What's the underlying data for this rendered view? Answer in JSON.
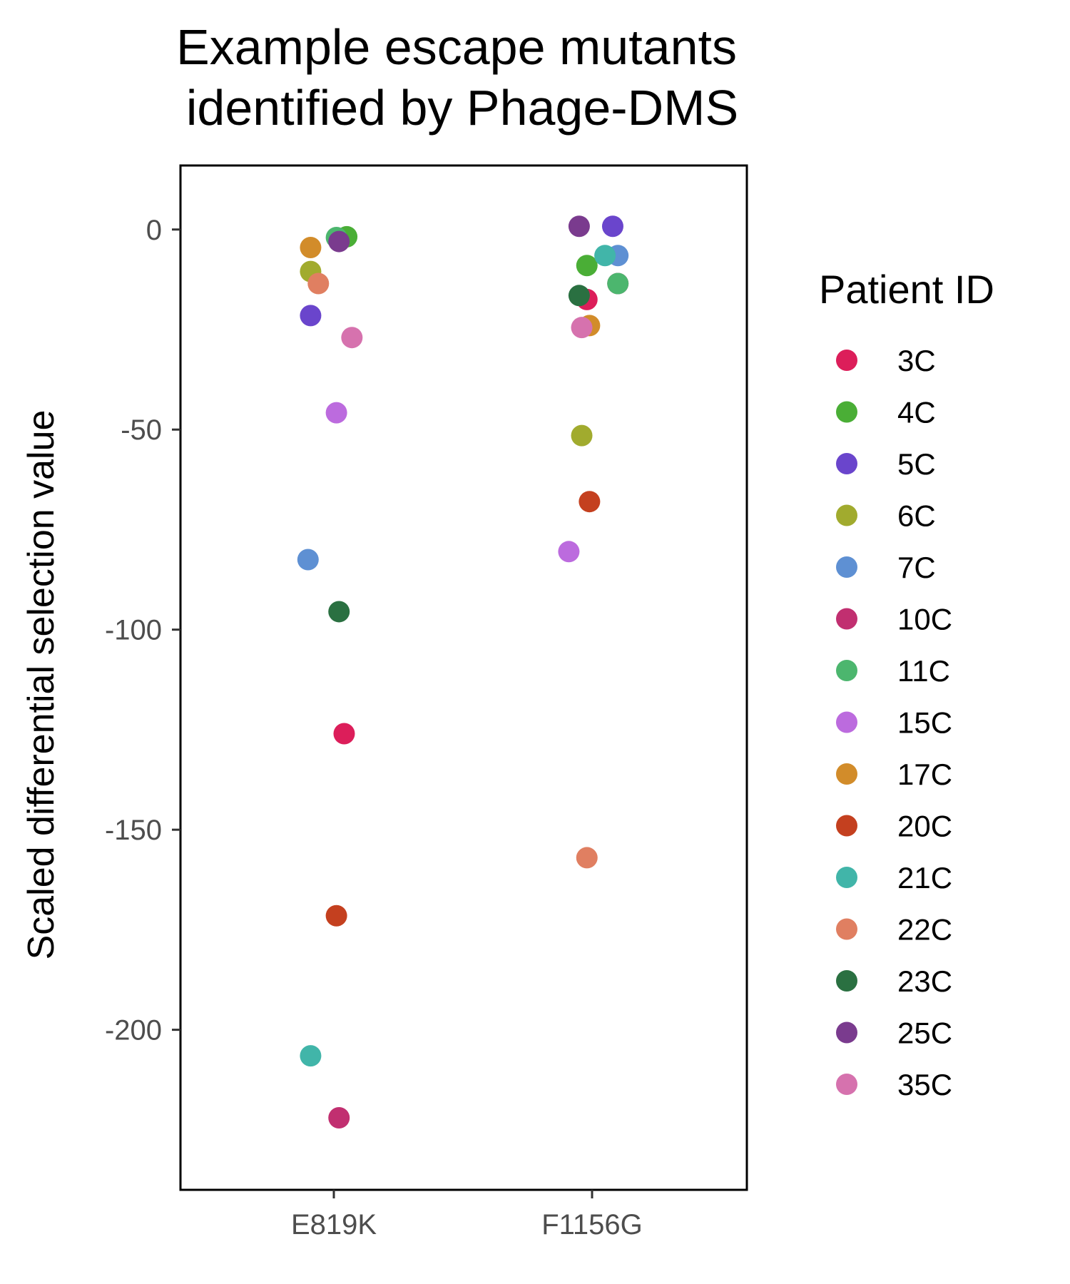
{
  "chart_data": {
    "type": "scatter",
    "title_lines": [
      "Example escape mutants",
      "identified by Phage-DMS"
    ],
    "xlabel": "",
    "ylabel": "Scaled differential selection value",
    "categories": [
      "E819K",
      "F1156G"
    ],
    "ylim": [
      -240,
      16
    ],
    "yticks": [
      0,
      -50,
      -100,
      -150,
      -200
    ],
    "grid": false,
    "legend": {
      "title": "Patient ID",
      "placement": "right"
    },
    "series": [
      {
        "name": "3C",
        "color": "#DC1E5A",
        "values": [
          -126,
          -17.5
        ]
      },
      {
        "name": "4C",
        "color": "#4AAE36",
        "values": [
          -1.8,
          -9
        ]
      },
      {
        "name": "5C",
        "color": "#6A45CC",
        "values": [
          -21.5,
          0.8
        ]
      },
      {
        "name": "6C",
        "color": "#A1AB2E",
        "values": [
          -10.5,
          -51.5
        ]
      },
      {
        "name": "7C",
        "color": "#5E90D3",
        "values": [
          -82.5,
          -6.5
        ]
      },
      {
        "name": "10C",
        "color": "#C12F70",
        "values": [
          -222,
          -13.5
        ]
      },
      {
        "name": "11C",
        "color": "#4CB66E",
        "values": [
          -2,
          -13.5
        ]
      },
      {
        "name": "15C",
        "color": "#BC6BDE",
        "values": [
          -45.8,
          -80.5
        ]
      },
      {
        "name": "17C",
        "color": "#D28C2A",
        "values": [
          -4.5,
          -24
        ]
      },
      {
        "name": "20C",
        "color": "#C4401F",
        "values": [
          -171.5,
          -68
        ]
      },
      {
        "name": "21C",
        "color": "#41B5A9",
        "values": [
          -206.5,
          -6.5
        ]
      },
      {
        "name": "22C",
        "color": "#E07F61",
        "values": [
          -13.5,
          -157
        ]
      },
      {
        "name": "23C",
        "color": "#2A7041",
        "values": [
          -95.5,
          -16.5
        ]
      },
      {
        "name": "25C",
        "color": "#7A3B8E",
        "values": [
          -3,
          0.8
        ]
      },
      {
        "name": "35C",
        "color": "#D672AE",
        "values": [
          -27,
          -24.5
        ]
      }
    ],
    "jitter": [
      [
        0.04,
        -0.02
      ],
      [
        0.05,
        -0.02
      ],
      [
        -0.09,
        0.08
      ],
      [
        -0.09,
        -0.04
      ],
      [
        -0.1,
        0.1
      ],
      [
        0.02,
        0.1
      ],
      [
        0.01,
        0.1
      ],
      [
        0.01,
        -0.09
      ],
      [
        -0.09,
        -0.01
      ],
      [
        0.01,
        -0.01
      ],
      [
        -0.09,
        0.05
      ],
      [
        -0.06,
        -0.02
      ],
      [
        0.02,
        -0.05
      ],
      [
        0.02,
        -0.05
      ],
      [
        0.07,
        -0.04
      ]
    ]
  }
}
